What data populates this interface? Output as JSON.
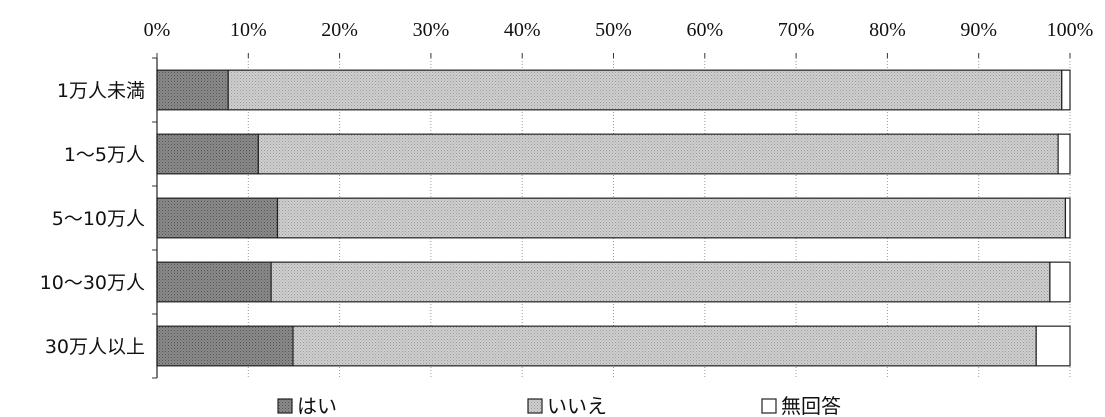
{
  "chart_data": {
    "type": "bar",
    "orientation": "horizontal",
    "stacked": true,
    "percent": true,
    "categories": [
      "1万人未満",
      "1～5万人",
      "5～10万人",
      "10～30万人",
      "30万人以上"
    ],
    "series": [
      {
        "name": "はい",
        "values": [
          7.8,
          11.1,
          13.2,
          12.5,
          14.9
        ],
        "color": "#7a7a7a"
      },
      {
        "name": "いいえ",
        "values": [
          91.3,
          87.6,
          86.3,
          85.3,
          81.4
        ],
        "color": "#c4c4c4"
      },
      {
        "name": "無回答",
        "values": [
          0.9,
          1.3,
          0.5,
          2.2,
          3.7
        ],
        "color": "#ffffff"
      }
    ],
    "x_ticks": [
      "0%",
      "10%",
      "20%",
      "30%",
      "40%",
      "50%",
      "60%",
      "70%",
      "80%",
      "90%",
      "100%"
    ],
    "xlim": [
      0,
      100
    ],
    "grid": true,
    "legend_position": "bottom"
  },
  "legend": {
    "items": [
      {
        "label": "はい",
        "icon": "dark-gray-square-icon"
      },
      {
        "label": "いいえ",
        "icon": "light-gray-square-icon"
      },
      {
        "label": "無回答",
        "icon": "white-square-icon"
      }
    ]
  }
}
